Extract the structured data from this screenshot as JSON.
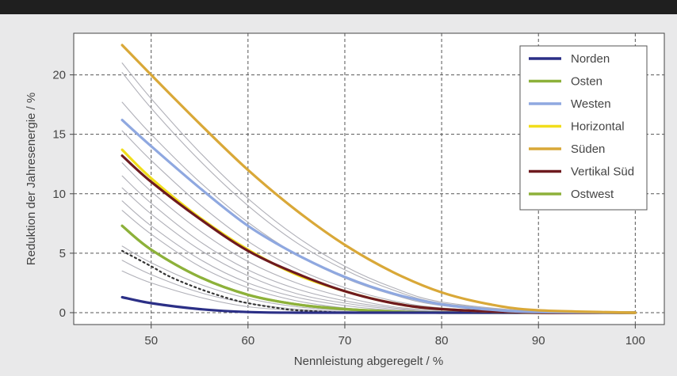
{
  "chart_data": {
    "type": "line",
    "xlabel": "Nennleistung abgeregelt / %",
    "ylabel": "Reduktion der Jahresenergie / %",
    "xlim": [
      42,
      103
    ],
    "ylim": [
      -1,
      23.5
    ],
    "xticks": [
      50,
      60,
      70,
      80,
      90,
      100
    ],
    "yticks": [
      0,
      5,
      10,
      15,
      20
    ],
    "grid": true,
    "legend_position": "top-right",
    "series": [
      {
        "name": "Norden",
        "color": "#2b2f86",
        "x": [
          47,
          50,
          55,
          60,
          65,
          70,
          80,
          90,
          100
        ],
        "y": [
          1.3,
          0.8,
          0.3,
          0.05,
          0.0,
          0.0,
          0.0,
          0.0,
          0.0
        ]
      },
      {
        "name": "Osten",
        "color": "#8db13a",
        "x": [
          47,
          50,
          55,
          60,
          65,
          70,
          75,
          80,
          90,
          100
        ],
        "y": [
          7.3,
          5.3,
          3.0,
          1.5,
          0.7,
          0.3,
          0.1,
          0.0,
          0.0,
          0.0
        ]
      },
      {
        "name": "Westen",
        "color": "#8fa8e0",
        "x": [
          47,
          50,
          55,
          60,
          65,
          70,
          75,
          80,
          85,
          90,
          100
        ],
        "y": [
          16.2,
          14.0,
          10.5,
          7.3,
          4.9,
          3.0,
          1.6,
          0.7,
          0.25,
          0.05,
          0.0
        ]
      },
      {
        "name": "Horizontal",
        "color": "#f1de1c",
        "x": [
          47,
          50,
          55,
          60,
          65,
          70,
          75,
          80,
          90,
          100
        ],
        "y": [
          13.7,
          11.3,
          8.0,
          5.3,
          3.2,
          1.8,
          0.8,
          0.3,
          0.0,
          0.0
        ]
      },
      {
        "name": "Süden",
        "color": "#d9a838",
        "x": [
          47,
          50,
          55,
          60,
          65,
          70,
          75,
          80,
          85,
          90,
          100
        ],
        "y": [
          22.5,
          20.0,
          15.9,
          12.0,
          8.6,
          5.7,
          3.4,
          1.7,
          0.7,
          0.2,
          0.0
        ]
      },
      {
        "name": "Vertikal Süd",
        "color": "#6e1a1f",
        "x": [
          47,
          50,
          55,
          60,
          65,
          70,
          75,
          80,
          90,
          100
        ],
        "y": [
          13.2,
          11.0,
          7.9,
          5.2,
          3.3,
          1.8,
          0.8,
          0.3,
          0.0,
          0.0
        ]
      },
      {
        "name": "Ostwest",
        "color": "#8db13a",
        "x": [
          47,
          50,
          55,
          60,
          65,
          70,
          75,
          80,
          90,
          100
        ],
        "y": [
          7.3,
          5.3,
          3.0,
          1.5,
          0.7,
          0.3,
          0.1,
          0.0,
          0.0,
          0.0
        ]
      }
    ],
    "unlabeled_lines": [
      {
        "style": "thin-gray",
        "x": [
          47,
          50,
          55,
          60,
          65,
          70,
          75,
          80,
          90,
          100
        ],
        "y": [
          21.0,
          18.0,
          13.5,
          9.6,
          6.4,
          3.9,
          2.1,
          0.9,
          0.1,
          0.0
        ]
      },
      {
        "style": "thin-gray",
        "x": [
          47,
          50,
          55,
          60,
          65,
          70,
          75,
          80,
          90,
          100
        ],
        "y": [
          20.2,
          17.2,
          12.8,
          9.0,
          5.9,
          3.6,
          1.9,
          0.8,
          0.1,
          0.0
        ]
      },
      {
        "style": "thin-gray",
        "x": [
          47,
          50,
          55,
          60,
          65,
          70,
          75,
          80,
          90,
          100
        ],
        "y": [
          17.7,
          15.0,
          11.0,
          7.6,
          4.9,
          2.9,
          1.5,
          0.6,
          0.0,
          0.0
        ]
      },
      {
        "style": "thin-gray",
        "x": [
          47,
          50,
          55,
          60,
          65,
          70,
          75,
          80,
          90,
          100
        ],
        "y": [
          15.3,
          12.8,
          9.1,
          6.0,
          3.7,
          2.1,
          1.0,
          0.4,
          0.0,
          0.0
        ]
      },
      {
        "style": "thin-gray",
        "x": [
          47,
          50,
          55,
          60,
          65,
          70,
          75,
          80,
          90,
          100
        ],
        "y": [
          12.6,
          10.2,
          6.9,
          4.3,
          2.5,
          1.3,
          0.5,
          0.2,
          0.0,
          0.0
        ]
      },
      {
        "style": "thin-gray",
        "x": [
          47,
          50,
          55,
          60,
          65,
          70,
          75,
          80,
          90,
          100
        ],
        "y": [
          11.5,
          9.2,
          6.0,
          3.6,
          2.0,
          1.0,
          0.4,
          0.1,
          0.0,
          0.0
        ]
      },
      {
        "style": "thin-gray",
        "x": [
          47,
          50,
          55,
          60,
          65,
          70,
          75,
          80,
          90,
          100
        ],
        "y": [
          10.5,
          8.3,
          5.3,
          3.1,
          1.6,
          0.8,
          0.3,
          0.1,
          0.0,
          0.0
        ]
      },
      {
        "style": "thin-gray",
        "x": [
          47,
          50,
          55,
          60,
          65,
          70,
          75,
          80,
          90,
          100
        ],
        "y": [
          9.4,
          7.3,
          4.5,
          2.5,
          1.3,
          0.6,
          0.2,
          0.05,
          0.0,
          0.0
        ]
      },
      {
        "style": "thin-gray",
        "x": [
          47,
          50,
          55,
          60,
          65,
          70,
          75,
          80,
          90,
          100
        ],
        "y": [
          8.6,
          6.6,
          3.9,
          2.1,
          1.0,
          0.4,
          0.15,
          0.0,
          0.0,
          0.0
        ]
      },
      {
        "style": "thin-gray",
        "x": [
          47,
          50,
          55,
          60,
          65,
          70,
          75,
          80,
          90,
          100
        ],
        "y": [
          5.6,
          4.2,
          2.4,
          1.2,
          0.5,
          0.2,
          0.05,
          0.0,
          0.0,
          0.0
        ]
      },
      {
        "style": "thin-gray",
        "x": [
          47,
          50,
          55,
          60,
          65,
          70,
          75,
          80,
          90,
          100
        ],
        "y": [
          4.4,
          3.2,
          1.7,
          0.8,
          0.3,
          0.1,
          0.0,
          0.0,
          0.0,
          0.0
        ]
      },
      {
        "style": "thin-gray",
        "x": [
          47,
          50,
          55,
          60,
          65,
          70,
          75,
          80,
          90,
          100
        ],
        "y": [
          3.5,
          2.5,
          1.3,
          0.5,
          0.2,
          0.05,
          0.0,
          0.0,
          0.0,
          0.0
        ]
      },
      {
        "style": "dotted-dark",
        "x": [
          47,
          50,
          52,
          55,
          58,
          60,
          63,
          65,
          70
        ],
        "y": [
          5.2,
          3.9,
          3.0,
          2.0,
          1.2,
          0.8,
          0.4,
          0.2,
          0.0
        ]
      }
    ]
  }
}
